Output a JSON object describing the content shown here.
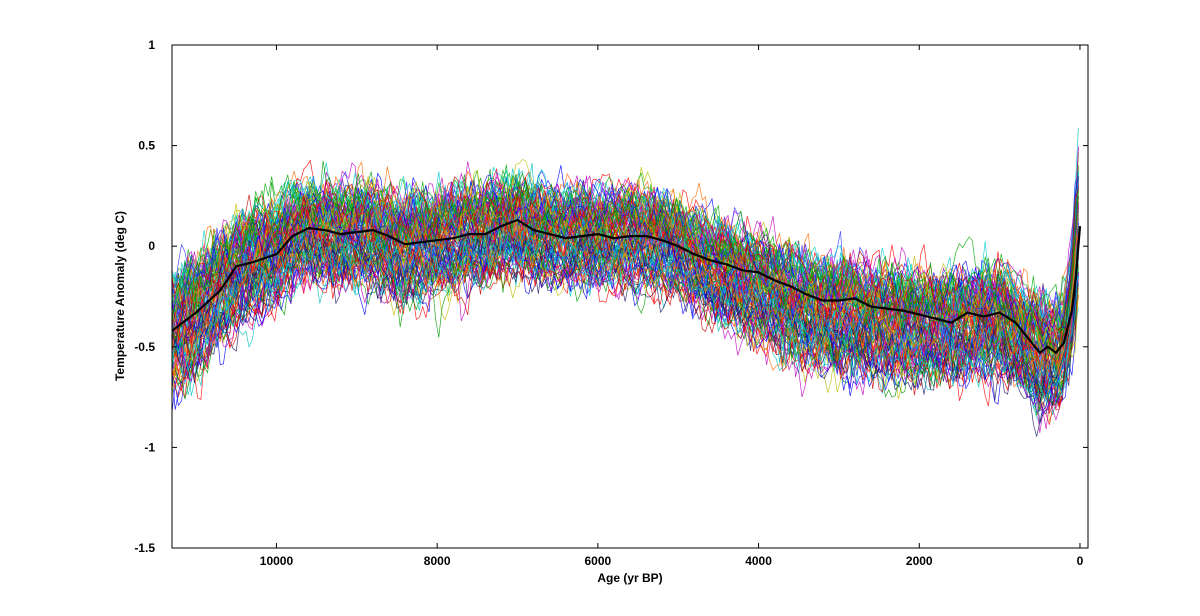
{
  "chart_data": {
    "type": "line",
    "title": "",
    "xlabel": "Age (yr BP)",
    "ylabel": "Temperature Anomaly (deg C)",
    "xlim": [
      11300,
      -100
    ],
    "ylim": [
      -1.5,
      1
    ],
    "x_reversed": true,
    "grid": false,
    "legend": "none",
    "x_ticks": [
      10000,
      8000,
      6000,
      4000,
      2000,
      0
    ],
    "y_ticks": [
      1,
      0.5,
      0,
      -0.5,
      -1,
      -1.5
    ],
    "x_tick_labels": [
      "10000",
      "8000",
      "6000",
      "4000",
      "2000",
      "0"
    ],
    "y_tick_labels": [
      "1",
      "0.5",
      "0",
      "-0.5",
      "-1",
      "-1.5"
    ],
    "series": [
      {
        "role": "mean",
        "color": "#000000",
        "x": [
          11300,
          11000,
          10700,
          10500,
          10300,
          10000,
          9800,
          9600,
          9400,
          9200,
          9000,
          8800,
          8600,
          8400,
          8200,
          8000,
          7800,
          7600,
          7400,
          7200,
          7000,
          6800,
          6600,
          6400,
          6200,
          6000,
          5800,
          5600,
          5400,
          5200,
          5000,
          4800,
          4600,
          4400,
          4200,
          4000,
          3800,
          3600,
          3400,
          3200,
          3000,
          2800,
          2600,
          2400,
          2200,
          2000,
          1800,
          1600,
          1400,
          1200,
          1000,
          800,
          600,
          500,
          400,
          300,
          200,
          100,
          50,
          0
        ],
        "y": [
          -0.42,
          -0.33,
          -0.22,
          -0.1,
          -0.08,
          -0.04,
          0.05,
          0.09,
          0.08,
          0.06,
          0.07,
          0.08,
          0.05,
          0.01,
          0.02,
          0.03,
          0.04,
          0.06,
          0.06,
          0.1,
          0.13,
          0.08,
          0.06,
          0.04,
          0.05,
          0.06,
          0.04,
          0.05,
          0.05,
          0.03,
          0.0,
          -0.04,
          -0.07,
          -0.09,
          -0.12,
          -0.13,
          -0.17,
          -0.2,
          -0.24,
          -0.27,
          -0.27,
          -0.26,
          -0.3,
          -0.31,
          -0.32,
          -0.34,
          -0.36,
          -0.38,
          -0.33,
          -0.35,
          -0.33,
          -0.38,
          -0.48,
          -0.53,
          -0.5,
          -0.53,
          -0.48,
          -0.32,
          -0.15,
          0.1
        ]
      }
    ],
    "ensemble": {
      "count": 120,
      "envelope": {
        "x": [
          11300,
          11000,
          10700,
          10500,
          10300,
          10000,
          9800,
          9600,
          9400,
          9200,
          9000,
          8800,
          8600,
          8400,
          8200,
          8000,
          7800,
          7600,
          7400,
          7200,
          7000,
          6800,
          6600,
          6400,
          6200,
          6000,
          5800,
          5600,
          5400,
          5200,
          5000,
          4800,
          4600,
          4400,
          4200,
          4000,
          3800,
          3600,
          3400,
          3200,
          3000,
          2800,
          2600,
          2400,
          2200,
          2000,
          1800,
          1600,
          1400,
          1200,
          1000,
          800,
          600,
          500,
          400,
          300,
          200,
          100,
          50,
          0
        ],
        "upper": [
          0.05,
          0.12,
          0.22,
          0.3,
          0.35,
          0.38,
          0.45,
          0.48,
          0.47,
          0.45,
          0.46,
          0.45,
          0.43,
          0.4,
          0.42,
          0.43,
          0.44,
          0.45,
          0.46,
          0.48,
          0.5,
          0.45,
          0.43,
          0.42,
          0.43,
          0.44,
          0.42,
          0.43,
          0.42,
          0.4,
          0.35,
          0.3,
          0.27,
          0.25,
          0.22,
          0.2,
          0.18,
          0.15,
          0.12,
          0.08,
          0.08,
          0.08,
          0.05,
          0.04,
          0.04,
          0.04,
          0.03,
          0.02,
          0.04,
          0.05,
          0.05,
          0.0,
          -0.05,
          -0.1,
          -0.1,
          -0.1,
          -0.05,
          0.2,
          0.5,
          0.8
        ],
        "lower": [
          -0.9,
          -0.8,
          -0.65,
          -0.55,
          -0.5,
          -0.42,
          -0.35,
          -0.3,
          -0.32,
          -0.35,
          -0.35,
          -0.35,
          -0.38,
          -0.42,
          -0.4,
          -0.38,
          -0.36,
          -0.33,
          -0.33,
          -0.3,
          -0.28,
          -0.32,
          -0.33,
          -0.35,
          -0.33,
          -0.32,
          -0.33,
          -0.33,
          -0.33,
          -0.35,
          -0.38,
          -0.42,
          -0.47,
          -0.52,
          -0.57,
          -0.62,
          -0.67,
          -0.72,
          -0.75,
          -0.78,
          -0.78,
          -0.77,
          -0.8,
          -0.8,
          -0.8,
          -0.82,
          -0.82,
          -0.83,
          -0.8,
          -0.82,
          -0.8,
          -0.85,
          -0.95,
          -1.0,
          -1.0,
          -1.0,
          -0.95,
          -0.75,
          -0.6,
          -0.3
        ]
      },
      "colors": [
        "#0000ff",
        "#ff0000",
        "#00aa00",
        "#00bfbf",
        "#bf00bf",
        "#bfbf00",
        "#1a1a66",
        "#ff6600",
        "#3333ff",
        "#cc0000",
        "#009900",
        "#00cccc"
      ]
    }
  }
}
